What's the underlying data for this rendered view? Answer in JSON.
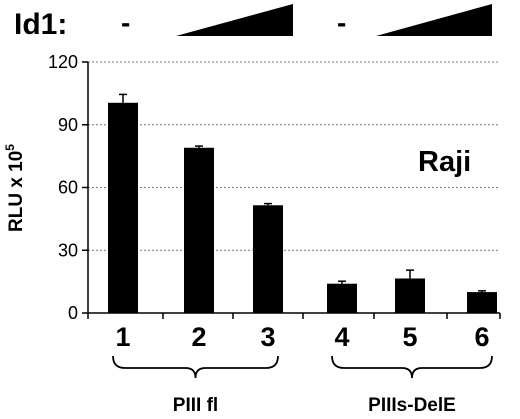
{
  "chart_data": {
    "type": "bar",
    "ylabel": "RLU x 10",
    "ylabel_superscript": "5",
    "ylim": [
      0,
      120
    ],
    "yticks": [
      0,
      30,
      60,
      90,
      120
    ],
    "grid": "horizontal dashed",
    "annotation": "Raji",
    "treatment": {
      "label": "Id1:",
      "groups": [
        {
          "absent": "-",
          "increasing": "ramp"
        },
        {
          "absent": "-",
          "increasing": "ramp"
        }
      ]
    },
    "categories": [
      "1",
      "2",
      "3",
      "4",
      "5",
      "6"
    ],
    "values": [
      100.5,
      79,
      51.5,
      14,
      16.5,
      10
    ],
    "errors": [
      4,
      0.8,
      0.8,
      1.2,
      4,
      0.6
    ],
    "bar_color": "#000000",
    "groups": [
      {
        "label": "PIII fl",
        "members": [
          "1",
          "2",
          "3"
        ]
      },
      {
        "label": "PIIIs-DelE",
        "members": [
          "4",
          "5",
          "6"
        ]
      }
    ]
  }
}
